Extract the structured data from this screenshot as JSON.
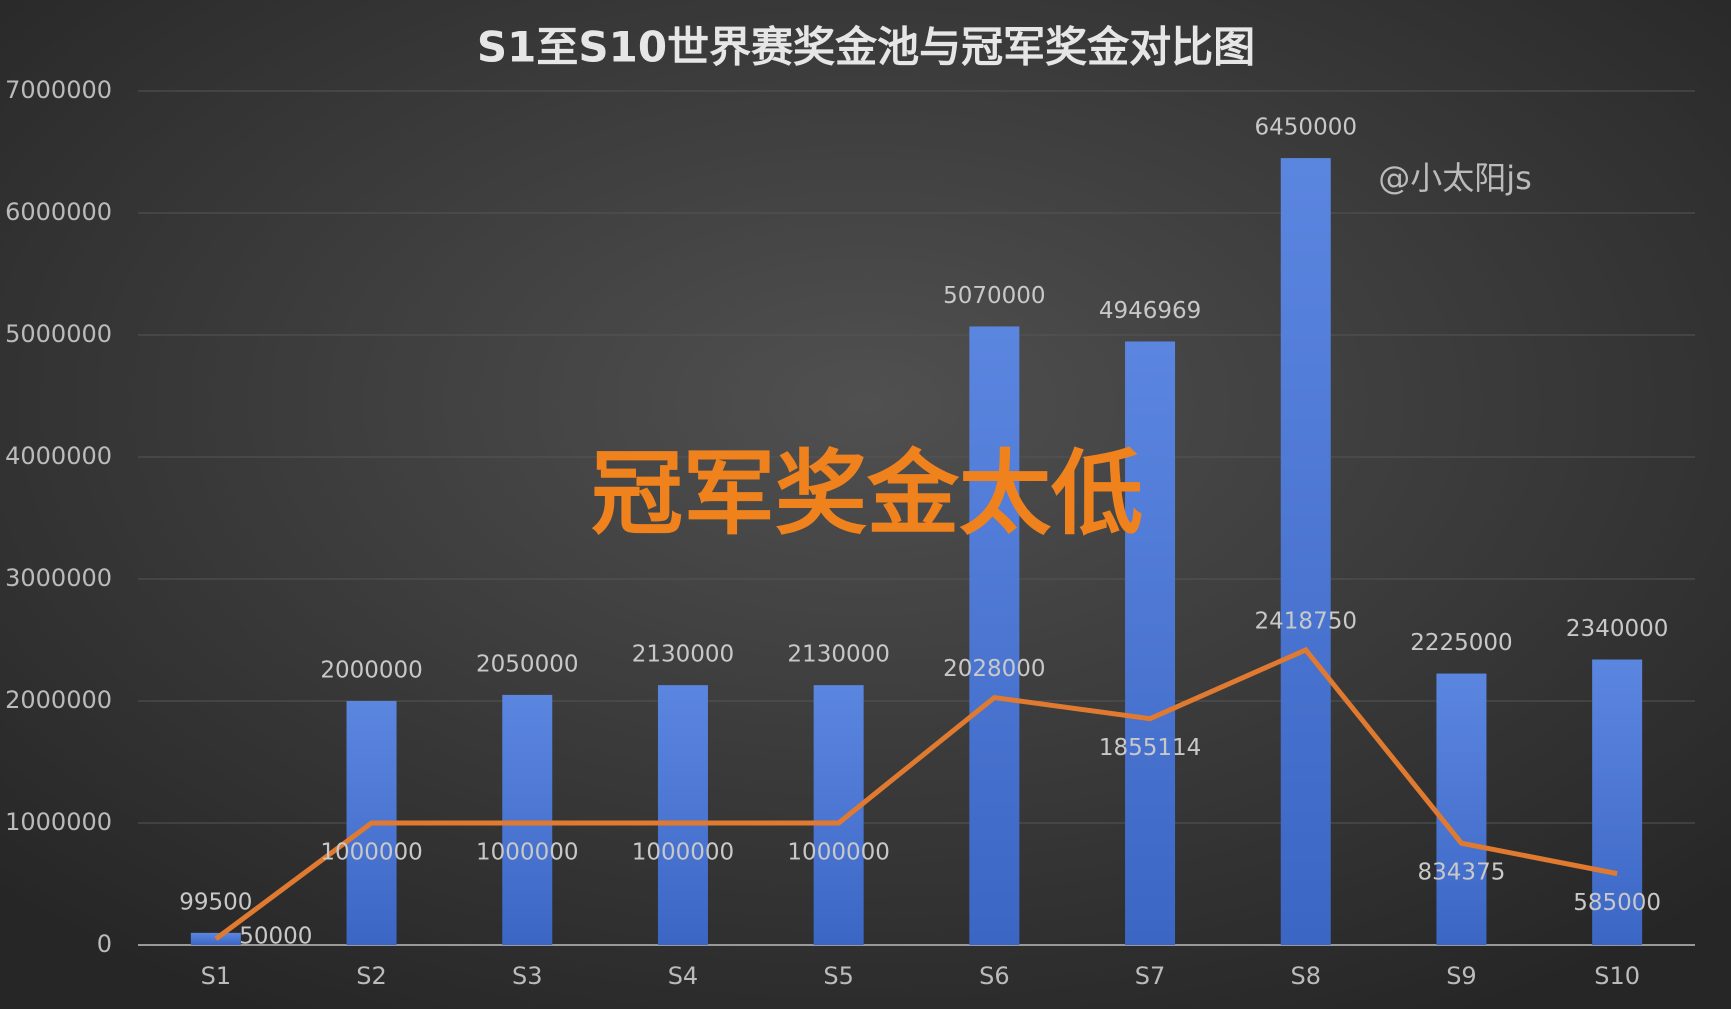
{
  "chart_data": {
    "type": "bar",
    "title": "S1至S10世界赛奖金池与冠军奖金对比图",
    "annotations": [
      "冠军奖金太低",
      "@小太阳js"
    ],
    "categories": [
      "S1",
      "S2",
      "S3",
      "S4",
      "S5",
      "S6",
      "S7",
      "S8",
      "S9",
      "S10"
    ],
    "series": [
      {
        "type": "bar",
        "color": "#4a78d8",
        "values": [
          99500,
          2000000,
          2050000,
          2130000,
          2130000,
          5070000,
          4946969,
          6450000,
          2225000,
          2340000
        ]
      },
      {
        "type": "line",
        "color": "#e07a30",
        "values": [
          50000,
          1000000,
          1000000,
          1000000,
          1000000,
          2028000,
          1855114,
          2418750,
          834375,
          585000
        ]
      }
    ],
    "ylim": [
      0,
      7000000
    ],
    "yticks": [
      0,
      1000000,
      2000000,
      3000000,
      4000000,
      5000000,
      6000000,
      7000000
    ],
    "grid": true
  }
}
